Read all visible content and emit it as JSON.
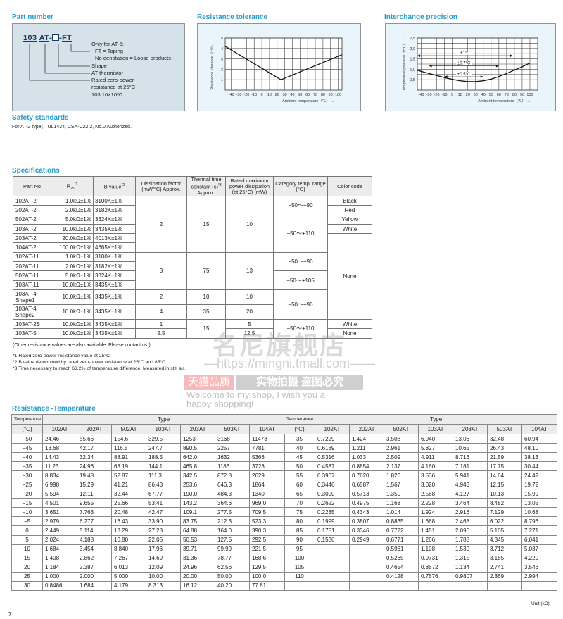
{
  "part_number": {
    "title": "Part number",
    "code_103": "103",
    "code_at": "AT",
    "code_dash1": "-",
    "code_dash2": "-",
    "code_ft": "FT",
    "labels": [
      "Only for AT-5:",
      "FT = Taping",
      "No denotation = Loose products",
      "Shape",
      "AT thermistor",
      "Rated zero-power",
      "resistance at 25°C",
      "103:10×10³Ω"
    ]
  },
  "resistance_tolerance": {
    "title": "Resistance tolerance",
    "chart_data": {
      "type": "line",
      "xlabel": "Ambient temperature（℃）",
      "ylabel": "Resistance tolerance（±%）",
      "xlim": [
        -48,
        105
      ],
      "ylim": [
        0,
        5
      ],
      "xticks": [
        -40,
        -30,
        -20,
        -10,
        0,
        10,
        20,
        30,
        40,
        50,
        60,
        70,
        80,
        90,
        100
      ],
      "yticks": [
        1,
        2,
        3,
        4,
        5
      ],
      "grid": true,
      "x": [
        -48,
        25,
        105
      ],
      "y": [
        4.2,
        1.0,
        3.4
      ]
    }
  },
  "interchange_precision": {
    "title": "Interchange precision",
    "chart_data": {
      "type": "line",
      "xlabel": "Ambient temperature（℃）",
      "ylabel": "Temperature precision（±℃）",
      "xlim": [
        -45,
        110
      ],
      "ylim": [
        0,
        2.5
      ],
      "xticks": [
        -40,
        -30,
        -20,
        -10,
        0,
        10,
        20,
        30,
        40,
        50,
        60,
        70,
        80,
        90,
        100
      ],
      "yticks": [
        "0,5",
        "1,0",
        "1,5",
        "2,0",
        "2,5"
      ],
      "grid": true,
      "x": [
        -45,
        -30,
        -20,
        -10,
        0,
        10,
        20,
        30,
        40,
        50,
        60,
        70,
        80,
        90,
        100
      ],
      "y": [
        0.95,
        0.8,
        0.7,
        0.6,
        0.52,
        0.45,
        0.41,
        0.41,
        0.45,
        0.53,
        0.65,
        0.8,
        0.96,
        1.12,
        1.3
      ],
      "annotations": [
        {
          "label": "±1°C",
          "from": -45,
          "to": 78,
          "level": 1.65
        },
        {
          "label": "±0.7°C",
          "from": -30,
          "to": 60,
          "level": 1.16
        },
        {
          "label": "±0.5°C",
          "from": -10,
          "to": 40,
          "level": 0.64
        }
      ]
    }
  },
  "safety": {
    "title": "Safety standards",
    "text": "For AT-2 type： UL1434, CSA-C22.2, No.0 Authorized."
  },
  "specifications": {
    "title": "Specifications",
    "headers": [
      {
        "t": "Part No"
      },
      {
        "t": "R",
        "sub": "25",
        "sup": "*1"
      },
      {
        "t": "B value",
        "sup": "*2"
      },
      {
        "t": "Dissipation factor (mW/°C) Approx."
      },
      {
        "t": "Thermal time constant (s)",
        "sup": "*3",
        "t2": " Approx."
      },
      {
        "t": "Rated maximum power dissipation (at 25°C) (mW)"
      },
      {
        "t": "Category temp. range (°C)"
      },
      {
        "t": "Color code"
      }
    ],
    "rows": [
      [
        "102AT-2",
        "1.0kΩ±1%",
        "3100K±1%",
        "2",
        "15",
        "10",
        "−50～+90",
        "Black"
      ],
      [
        "202AT-2",
        "2.0kΩ±1%",
        "3182K±1%",
        null,
        null,
        null,
        null,
        "Red"
      ],
      [
        "502AT-2",
        "5.0kΩ±1%",
        "3324K±1%",
        null,
        null,
        null,
        "−50～+110",
        "Yellow"
      ],
      [
        "103AT-2",
        "10.0kΩ±1%",
        "3435K±1%",
        null,
        null,
        null,
        null,
        "White"
      ],
      [
        "203AT-2",
        "20.0kΩ±1%",
        "4013K±1%",
        null,
        null,
        null,
        null,
        "None"
      ],
      [
        "104AT-2",
        "100.0kΩ±1%",
        "4665K±1%",
        null,
        null,
        null,
        null,
        null
      ],
      [
        "102AT-11",
        "1.0kΩ±1%",
        "3100K±1%",
        "3",
        "75",
        "13",
        "−50～+90",
        null
      ],
      [
        "202AT-11",
        "2.0kΩ±1%",
        "3182K±1%",
        null,
        null,
        null,
        null,
        null
      ],
      [
        "502AT-11",
        "5.0kΩ±1%",
        "3324K±1%",
        null,
        null,
        null,
        "−50～+105",
        null
      ],
      [
        "103AT-11",
        "10.0kΩ±1%",
        "3435K±1%",
        null,
        null,
        null,
        null,
        null
      ],
      [
        "103AT-4 Shape1",
        "10.0kΩ±1%",
        "3435K±1%",
        "2",
        "10",
        "10",
        "−50～+90",
        null
      ],
      [
        "103AT-4 Shape2",
        "10.0kΩ±1%",
        "3435K±1%",
        "4",
        "35",
        "20",
        null,
        null
      ],
      [
        "103AT-2S",
        "10.0kΩ±1%",
        "3435K±1%",
        "1",
        "15",
        "5",
        "−50～+110",
        "White"
      ],
      [
        "103AT-5",
        "10.0kΩ±1%",
        "3435K±1%",
        "2.5",
        null,
        "12.5",
        null,
        "None"
      ]
    ],
    "note": "(Other resistance values are also available. Please contact us.)",
    "footnotes": [
      "*1  Rated zero-power resistance value at 25°C.",
      "*2  B value determined by rated zero-power resistance at 25°C and 85°C.",
      "*3  Time necessary to reach 63.2% of temperature difference. Measured in still air."
    ]
  },
  "rt": {
    "title": "Resistance -Temperature",
    "temp_header": "Temperature",
    "temp_unit": "(°C)",
    "type_header": "Type",
    "types": [
      "102AT",
      "202AT",
      "502AT",
      "103AT",
      "203AT",
      "503AT",
      "104AT"
    ],
    "left_rows": [
      [
        "−50",
        "24.46",
        "55.66",
        "154.6",
        "329.5",
        "1253",
        "3168",
        "11473"
      ],
      [
        "−45",
        "18.68",
        "42.17",
        "116.5",
        "247.7",
        "890.5",
        "2257",
        "7781"
      ],
      [
        "−40",
        "14.43",
        "32.34",
        "88.91",
        "188.5",
        "642.0",
        "1632",
        "5366"
      ],
      [
        "−35",
        "11.23",
        "24.96",
        "68.19",
        "144.1",
        "465.8",
        "1186",
        "3728"
      ],
      [
        "−30",
        "8.834",
        "19.48",
        "52.87",
        "111.3",
        "342.5",
        "872.8",
        "2629"
      ],
      [
        "−25",
        "6.998",
        "15.29",
        "41.21",
        "86.43",
        "253.6",
        "646.3",
        "1864"
      ],
      [
        "−20",
        "5.594",
        "12.11",
        "32.44",
        "67.77",
        "190.0",
        "484.3",
        "1340"
      ],
      [
        "−15",
        "4.501",
        "9.655",
        "25.66",
        "53.41",
        "143.2",
        "364.6",
        "969.0"
      ],
      [
        "−10",
        "3.651",
        "7.763",
        "20.48",
        "42.47",
        "109.1",
        "277.5",
        "709.5"
      ],
      [
        "−5",
        "2.979",
        "6.277",
        "16.43",
        "33.90",
        "83.75",
        "212.3",
        "523.3"
      ],
      [
        "0",
        "2.449",
        "5.114",
        "13.29",
        "27.28",
        "64.88",
        "164.0",
        "390.3"
      ],
      [
        "5",
        "2.024",
        "4.188",
        "10.80",
        "22.05",
        "50.53",
        "127.5",
        "292.5"
      ],
      [
        "10",
        "1.684",
        "3.454",
        "8.840",
        "17.96",
        "39.71",
        "99.99",
        "221.5"
      ],
      [
        "15",
        "1.408",
        "2.862",
        "7.267",
        "14.69",
        "31.36",
        "78.77",
        "168.6"
      ],
      [
        "20",
        "1.184",
        "2.387",
        "6.013",
        "12.09",
        "24.96",
        "62.56",
        "129.5"
      ],
      [
        "25",
        "1.000",
        "2.000",
        "5.000",
        "10.00",
        "20.00",
        "50.00",
        "100.0"
      ],
      [
        "30",
        "0.8486",
        "1.684",
        "4.179",
        "8.313",
        "16.12",
        "40.20",
        "77.81"
      ]
    ],
    "right_rows": [
      [
        "35",
        "0.7229",
        "1.424",
        "3.508",
        "6.940",
        "13.06",
        "32.48",
        "60.94"
      ],
      [
        "40",
        "0.6189",
        "1.211",
        "2.961",
        "5.827",
        "10.65",
        "26.43",
        "48.10"
      ],
      [
        "45",
        "0.5316",
        "1.033",
        "2.509",
        "4.911",
        "8.716",
        "21.59",
        "38.13"
      ],
      [
        "50",
        "0.4587",
        "0.8854",
        "2.137",
        "4.160",
        "7.181",
        "17.75",
        "30.44"
      ],
      [
        "55",
        "0.3967",
        "0.7620",
        "1.826",
        "3.536",
        "5.941",
        "14.64",
        "24.42"
      ],
      [
        "60",
        "0.3446",
        "0.6587",
        "1.567",
        "3.020",
        "4.943",
        "12.15",
        "19.72"
      ],
      [
        "65",
        "0.3000",
        "0.5713",
        "1.350",
        "2.588",
        "4.127",
        "10.13",
        "15.99"
      ],
      [
        "70",
        "0.2622",
        "0.4975",
        "1.168",
        "2.228",
        "3.464",
        "8.482",
        "13.05"
      ],
      [
        "75",
        "0.2285",
        "0.4343",
        "1.014",
        "1.924",
        "2.916",
        "7.129",
        "10.68"
      ],
      [
        "80",
        "0.1999",
        "0.3807",
        "0.8835",
        "1.668",
        "2.468",
        "6.022",
        "8.796"
      ],
      [
        "85",
        "0.1751",
        "0.3346",
        "0.7722",
        "1.451",
        "2.096",
        "5.105",
        "7.271"
      ],
      [
        "90",
        "0.1536",
        "0.2949",
        "0.6771",
        "1.266",
        "1.788",
        "4.345",
        "6.041"
      ],
      [
        "95",
        "",
        "",
        "0.5961",
        "1.108",
        "1.530",
        "3.712",
        "5.037"
      ],
      [
        "100",
        "",
        "",
        "0.5265",
        "0.9731",
        "1.315",
        "3.185",
        "4.220"
      ],
      [
        "105",
        "",
        "",
        "0.4654",
        "0.8572",
        "1.134",
        "2.741",
        "3.546"
      ],
      [
        "110",
        "",
        "",
        "0.4128",
        "0.7576",
        "0.9807",
        "2.369",
        "2.994"
      ],
      [
        "",
        "",
        "",
        "",
        "",
        "",
        "",
        ""
      ]
    ],
    "unit": "Unit (kΩ)"
  },
  "page_number": "7",
  "watermark": {
    "shop_name": "名尼旗舰店",
    "url": "—https://mingni.tmall.com——",
    "badge_left": "天猫品质",
    "badge_right": "实物拍摄  盗图必究",
    "welcome": "Welcome to my shop, I wish you a",
    "welcome2": "happy shopping!"
  },
  "colors": {
    "title": "#2a9cc8",
    "part_box": "#d6e2e9",
    "chart_box": "#e9f5fb",
    "line": "#222222"
  }
}
